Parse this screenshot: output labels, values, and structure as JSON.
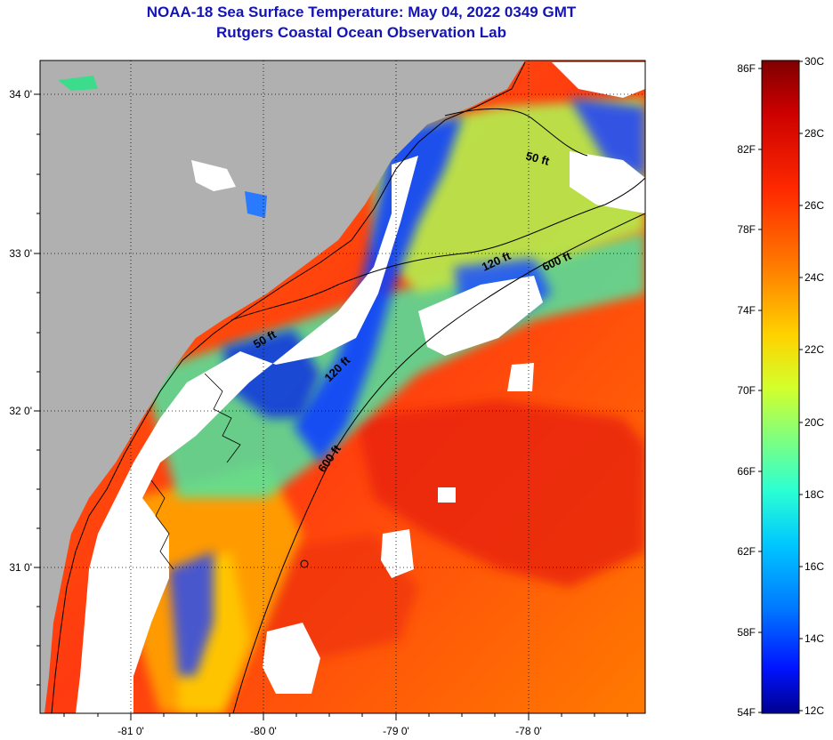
{
  "header": {
    "title": "NOAA-18 Sea Surface Temperature:  May 04, 2022 0349 GMT",
    "subtitle": "Rutgers Coastal Ocean Observation Lab"
  },
  "axes": {
    "latitude_labels": [
      "34 0'",
      "33 0'",
      "32 0'",
      "31 0'"
    ],
    "longitude_labels": [
      "-81 0'",
      "-80 0'",
      "-79 0'",
      "-78 0'"
    ]
  },
  "isobaths": {
    "shelf_50": "50 ft",
    "shelf_120_north": "120 ft",
    "shelf_120_mid": "120 ft",
    "slope_600_north": "600 ft",
    "slope_600_mid": "600 ft",
    "shelf_50_south": "50 ft"
  },
  "colorbar": {
    "fahrenheit_labels": [
      "86F",
      "82F",
      "78F",
      "74F",
      "70F",
      "66F",
      "62F",
      "58F",
      "54F"
    ],
    "celsius_labels": [
      "30C",
      "28C",
      "26C",
      "24C",
      "22C",
      "20C",
      "18C",
      "16C",
      "14C",
      "12C"
    ],
    "gradient": [
      "#7f0000",
      "#cc0000",
      "#ff2a00",
      "#ff7f00",
      "#ffd200",
      "#d4ff2a",
      "#7fff7f",
      "#2affd4",
      "#00c8ff",
      "#0078ff",
      "#0014ff",
      "#00008f"
    ]
  },
  "colors": {
    "land": "#b0b0b0",
    "cloud": "#ffffff",
    "title": "#1414b4"
  }
}
